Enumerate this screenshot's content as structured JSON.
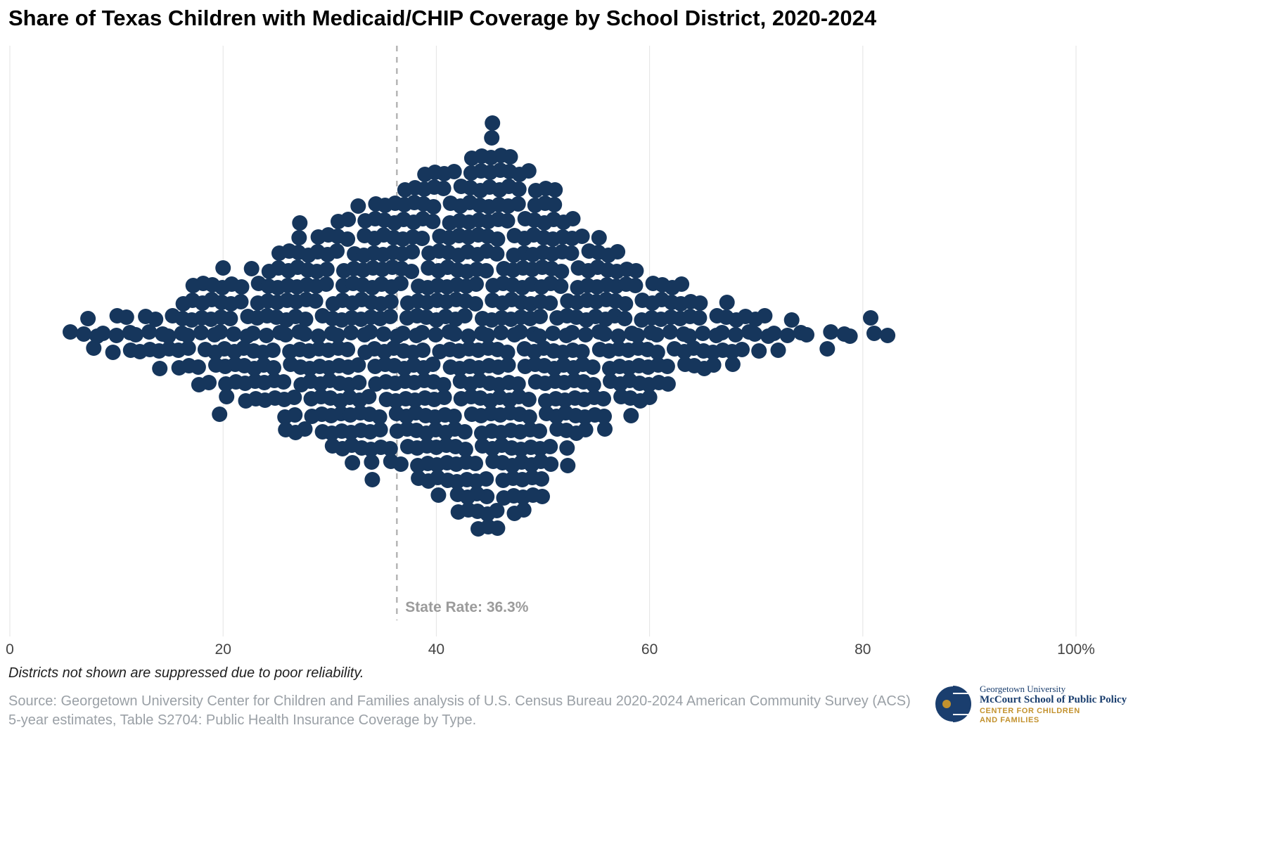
{
  "title": "Share of Texas Children with Medicaid/CHIP Coverage by School District, 2020-2024",
  "chart_data": {
    "type": "scatter",
    "subtype": "beeswarm",
    "title": "Share of Texas Children with Medicaid/CHIP Coverage by School District, 2020-2024",
    "xlabel": "",
    "ylabel": "",
    "xlim": [
      0,
      100
    ],
    "x_tick_values": [
      0,
      20,
      40,
      60,
      80,
      100
    ],
    "x_ticks": [
      "0",
      "20",
      "40",
      "60",
      "80",
      "100%"
    ],
    "grid": true,
    "dot_color": "#16365c",
    "state_rate": 36.3,
    "state_rate_label": "State Rate: 36.3%",
    "bins": {
      "x": [
        6,
        7,
        8,
        9,
        10,
        11,
        12,
        13,
        14,
        15,
        16,
        17,
        18,
        19,
        20,
        21,
        22,
        23,
        24,
        25,
        26,
        27,
        28,
        29,
        30,
        31,
        32,
        33,
        34,
        35,
        36,
        37,
        38,
        39,
        40,
        41,
        42,
        43,
        44,
        45,
        46,
        47,
        48,
        49,
        50,
        51,
        52,
        53,
        54,
        55,
        56,
        57,
        58,
        59,
        60,
        61,
        62,
        63,
        64,
        65,
        66,
        67,
        68,
        69,
        70,
        71,
        72,
        73,
        74,
        75,
        77,
        78,
        79,
        81,
        82
      ],
      "counts": [
        1,
        2,
        2,
        1,
        3,
        3,
        2,
        3,
        4,
        3,
        5,
        6,
        7,
        7,
        10,
        7,
        8,
        9,
        9,
        10,
        12,
        14,
        12,
        13,
        14,
        15,
        16,
        16,
        18,
        16,
        17,
        18,
        19,
        20,
        21,
        20,
        22,
        23,
        24,
        26,
        24,
        23,
        22,
        21,
        20,
        18,
        16,
        14,
        13,
        12,
        12,
        10,
        10,
        9,
        8,
        7,
        7,
        6,
        5,
        5,
        4,
        4,
        4,
        3,
        3,
        2,
        2,
        2,
        1,
        1,
        2,
        1,
        1,
        2,
        1
      ]
    }
  },
  "footnote": "Districts not shown are suppressed due to poor reliability.",
  "source": "Source: Georgetown University Center for Children and Families analysis of U.S. Census Bureau 2020-2024 American Community Survey (ACS) 5-year estimates, Table S2704: Public Health Insurance Coverage by Type.",
  "logo": {
    "line1": "Georgetown University",
    "line2": "McCourt School of Public Policy",
    "line3": "CENTER FOR CHILDREN",
    "line4": "AND FAMILIES",
    "navy": "#1a3e6e",
    "gold": "#c3922e"
  }
}
